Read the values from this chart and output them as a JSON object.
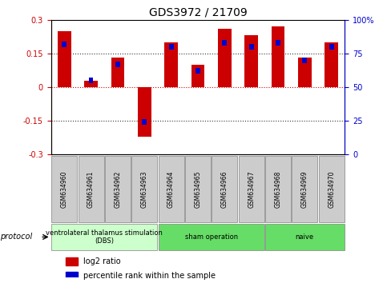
{
  "title": "GDS3972 / 21709",
  "samples": [
    "GSM634960",
    "GSM634961",
    "GSM634962",
    "GSM634963",
    "GSM634964",
    "GSM634965",
    "GSM634966",
    "GSM634967",
    "GSM634968",
    "GSM634969",
    "GSM634970"
  ],
  "log2_ratio": [
    0.25,
    0.03,
    0.13,
    -0.22,
    0.2,
    0.1,
    0.26,
    0.23,
    0.27,
    0.13,
    0.2
  ],
  "percentile_rank": [
    82,
    55,
    67,
    24,
    80,
    62,
    83,
    80,
    83,
    70,
    80
  ],
  "ylim_left": [
    -0.3,
    0.3
  ],
  "ylim_right": [
    0,
    100
  ],
  "yticks_left": [
    -0.3,
    -0.15,
    0,
    0.15,
    0.3
  ],
  "yticks_right": [
    0,
    25,
    50,
    75,
    100
  ],
  "bar_color_red": "#cc0000",
  "bar_color_blue": "#0000cc",
  "hline_color": "#cc0000",
  "dotted_color": "#333333",
  "protocol_groups": [
    {
      "label": "ventrolateral thalamus stimulation\n(DBS)",
      "start": 0,
      "end": 3,
      "color": "#ccffcc"
    },
    {
      "label": "sham operation",
      "start": 4,
      "end": 7,
      "color": "#66dd66"
    },
    {
      "label": "naive",
      "start": 8,
      "end": 10,
      "color": "#66dd66"
    }
  ],
  "protocol_label": "protocol",
  "legend_items": [
    {
      "color": "#cc0000",
      "label": "log2 ratio"
    },
    {
      "color": "#0000cc",
      "label": "percentile rank within the sample"
    }
  ],
  "tick_bg_color": "#cccccc"
}
